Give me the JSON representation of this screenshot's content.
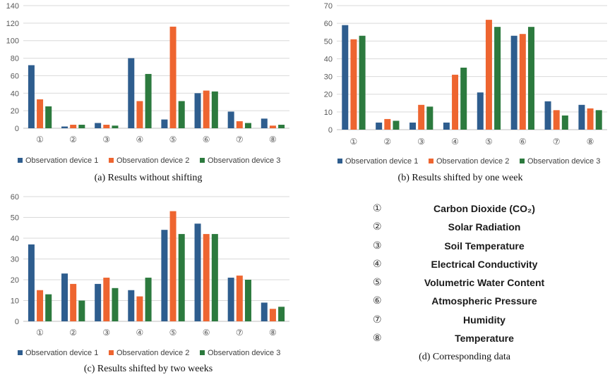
{
  "colors": {
    "series": [
      "#2e5d8e",
      "#ee6530",
      "#2c7a3e"
    ],
    "grid": "#d9d9d9",
    "axis": "#bfbfbf"
  },
  "series_names": [
    "Observation device 1",
    "Observation device 2",
    "Observation device 3"
  ],
  "category_labels": [
    "①",
    "②",
    "③",
    "④",
    "⑤",
    "⑥",
    "⑦",
    "⑧"
  ],
  "chart_data": [
    {
      "type": "bar",
      "categories": [
        "①",
        "②",
        "③",
        "④",
        "⑤",
        "⑥",
        "⑦",
        "⑧"
      ],
      "series": [
        {
          "name": "Observation device 1",
          "values": [
            72,
            2,
            6,
            80,
            10,
            40,
            19,
            11
          ]
        },
        {
          "name": "Observation device 2",
          "values": [
            33,
            4,
            4,
            31,
            116,
            43,
            8,
            3
          ]
        },
        {
          "name": "Observation device 3",
          "values": [
            25,
            4,
            3,
            62,
            31,
            42,
            6,
            4
          ]
        }
      ],
      "ylim": [
        0,
        140
      ],
      "yticks": [
        0,
        20,
        40,
        60,
        80,
        100,
        120,
        140
      ],
      "grid": true,
      "legend": "bottom"
    },
    {
      "type": "bar",
      "categories": [
        "①",
        "②",
        "③",
        "④",
        "⑤",
        "⑥",
        "⑦",
        "⑧"
      ],
      "series": [
        {
          "name": "Observation device 1",
          "values": [
            59,
            4,
            4,
            4,
            21,
            53,
            16,
            14
          ]
        },
        {
          "name": "Observation device 2",
          "values": [
            51,
            6,
            14,
            31,
            62,
            54,
            11,
            12
          ]
        },
        {
          "name": "Observation device 3",
          "values": [
            53,
            5,
            13,
            35,
            58,
            58,
            8,
            11
          ]
        }
      ],
      "ylim": [
        0,
        70
      ],
      "yticks": [
        0,
        10,
        20,
        30,
        40,
        50,
        60,
        70
      ],
      "grid": true,
      "legend": "bottom"
    },
    {
      "type": "bar",
      "categories": [
        "①",
        "②",
        "③",
        "④",
        "⑤",
        "⑥",
        "⑦",
        "⑧"
      ],
      "series": [
        {
          "name": "Observation device 1",
          "values": [
            37,
            23,
            18,
            15,
            44,
            47,
            21,
            9
          ]
        },
        {
          "name": "Observation device 2",
          "values": [
            15,
            18,
            21,
            12,
            53,
            42,
            22,
            6
          ]
        },
        {
          "name": "Observation device 3",
          "values": [
            13,
            10,
            16,
            21,
            42,
            42,
            20,
            7
          ]
        }
      ],
      "ylim": [
        0,
        60
      ],
      "yticks": [
        0,
        10,
        20,
        30,
        40,
        50,
        60
      ],
      "grid": true,
      "legend": "bottom"
    }
  ],
  "captions": {
    "a": "(a) Results without shifting",
    "b": "(b) Results shifted by one week",
    "c": "(c) Results shifted by two weeks",
    "d": "(d) Corresponding data"
  },
  "legend_d": [
    {
      "num": "①",
      "name": "Carbon Dioxide (CO₂)"
    },
    {
      "num": "②",
      "name": "Solar Radiation"
    },
    {
      "num": "③",
      "name": "Soil Temperature"
    },
    {
      "num": "④",
      "name": "Electrical Conductivity"
    },
    {
      "num": "⑤",
      "name": "Volumetric Water Content"
    },
    {
      "num": "⑥",
      "name": "Atmospheric Pressure"
    },
    {
      "num": "⑦",
      "name": "Humidity"
    },
    {
      "num": "⑧",
      "name": "Temperature"
    }
  ]
}
